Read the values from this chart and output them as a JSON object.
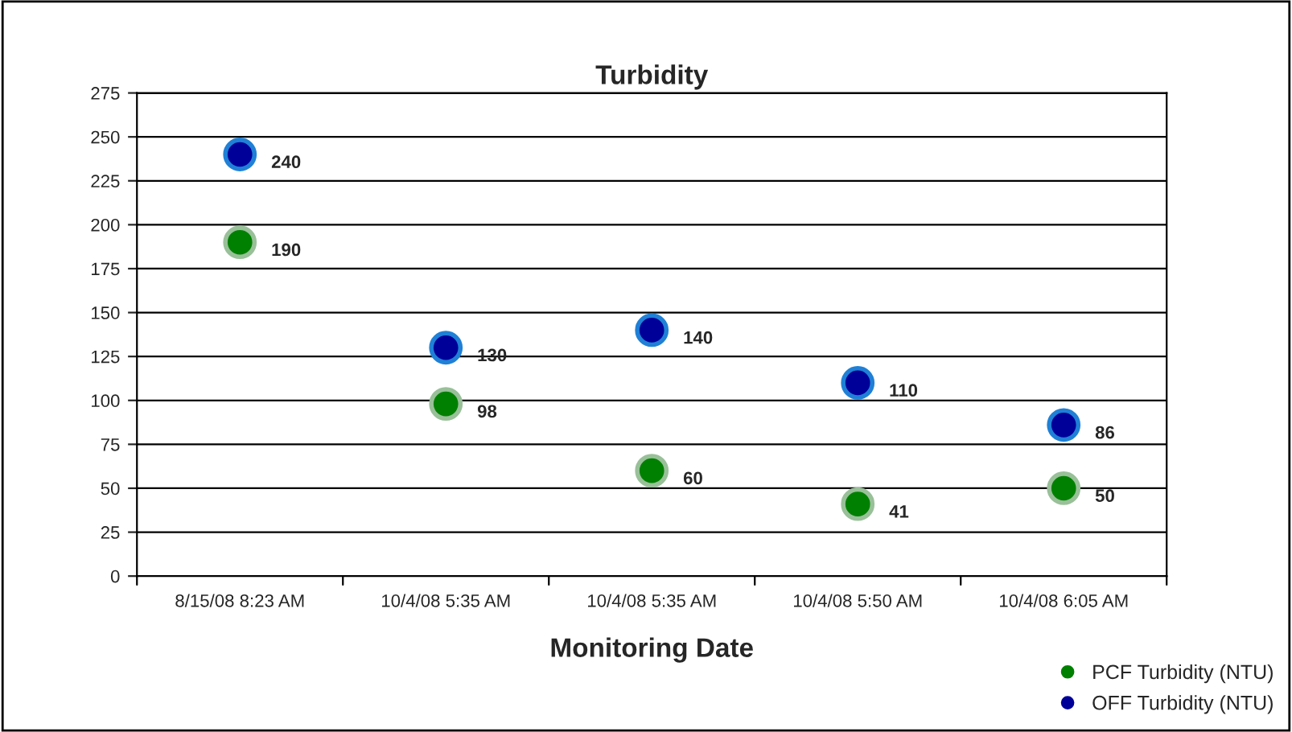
{
  "chart_data": {
    "type": "scatter",
    "title": "Turbidity",
    "xlabel": "Monitoring Date",
    "categories": [
      "8/15/08 8:23 AM",
      "10/4/08 5:35 AM",
      "10/4/08 5:35 AM",
      "10/4/08 5:50 AM",
      "10/4/08 6:05 AM"
    ],
    "series": [
      {
        "name": "PCF Turbidity (NTU)",
        "color": "#008000",
        "values": [
          190,
          98,
          60,
          41,
          50
        ]
      },
      {
        "name": "OFF Turbidity (NTU)",
        "color": "#000099",
        "values": [
          240,
          130,
          140,
          110,
          86
        ]
      }
    ],
    "ylim": [
      0,
      275
    ],
    "yticks": [
      0,
      25,
      50,
      75,
      100,
      125,
      150,
      175,
      200,
      225,
      250,
      275
    ],
    "grid": "y",
    "legend": "bottom right",
    "marker": "circle",
    "data_labels": true
  }
}
